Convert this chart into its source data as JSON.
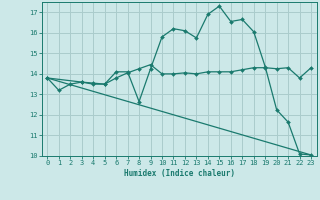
{
  "title": "",
  "xlabel": "Humidex (Indice chaleur)",
  "xlim": [
    -0.5,
    23.5
  ],
  "ylim": [
    10,
    17.5
  ],
  "yticks": [
    10,
    11,
    12,
    13,
    14,
    15,
    16,
    17
  ],
  "xticks": [
    0,
    1,
    2,
    3,
    4,
    5,
    6,
    7,
    8,
    9,
    10,
    11,
    12,
    13,
    14,
    15,
    16,
    17,
    18,
    19,
    20,
    21,
    22,
    23
  ],
  "background_color": "#cce8e8",
  "grid_color": "#aacccc",
  "line_color": "#1a7a6e",
  "line1_x": [
    0,
    1,
    2,
    3,
    4,
    5,
    6,
    7,
    8,
    9,
    10,
    11,
    12,
    13,
    14,
    15,
    16,
    17,
    18,
    19,
    20,
    21,
    22,
    23
  ],
  "line1_y": [
    13.8,
    13.2,
    13.5,
    13.6,
    13.5,
    13.5,
    14.1,
    14.1,
    12.65,
    14.25,
    15.8,
    16.2,
    16.1,
    15.75,
    16.9,
    17.3,
    16.55,
    16.65,
    16.05,
    14.35,
    12.25,
    11.65,
    10.1,
    10.05
  ],
  "line2_x": [
    0,
    3,
    4,
    5,
    6,
    7,
    8,
    9,
    10,
    11,
    12,
    13,
    14,
    15,
    16,
    17,
    18,
    19,
    20,
    21,
    22,
    23
  ],
  "line2_y": [
    13.8,
    13.6,
    13.55,
    13.5,
    13.8,
    14.05,
    14.25,
    14.45,
    14.0,
    14.0,
    14.05,
    14.0,
    14.1,
    14.1,
    14.1,
    14.2,
    14.3,
    14.3,
    14.25,
    14.3,
    13.8,
    14.3
  ],
  "line3_x": [
    0,
    23
  ],
  "line3_y": [
    13.8,
    10.05
  ]
}
